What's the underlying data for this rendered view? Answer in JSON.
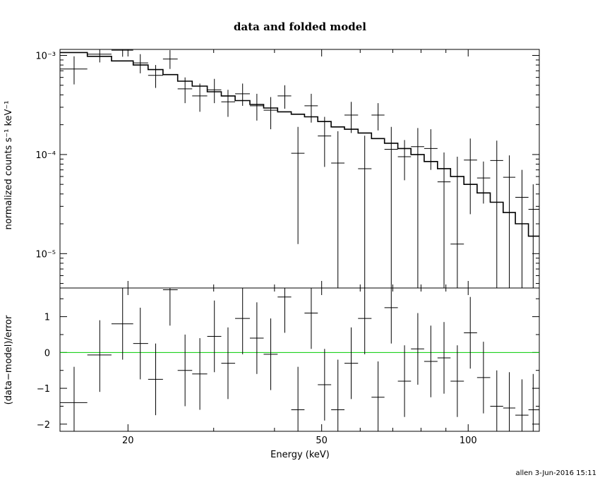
{
  "chart_data": {
    "type": "scatter",
    "title": "data and folded model",
    "xlabel": "Energy (keV)",
    "x_scale": "log",
    "xlim": [
      14.5,
      140
    ],
    "x_ticks": [
      20,
      50,
      100
    ],
    "footer": "allen  3-Jun-2016 15:11",
    "top_panel": {
      "ylabel": "normalized counts s⁻¹ keV⁻¹",
      "y_scale": "log",
      "ylim": [
        4.5e-06,
        0.00115
      ],
      "y_ticks": [
        {
          "value": 0.001,
          "label": "10⁻³"
        },
        {
          "value": 0.0001,
          "label": "10⁻⁴"
        },
        {
          "value": 1e-05,
          "label": "10⁻⁵"
        }
      ],
      "data_points": [
        {
          "x": 15.5,
          "xlo": 14.5,
          "xhi": 16.5,
          "y": 0.00073,
          "ylo": 0.00051,
          "yhi": 0.00098
        },
        {
          "x": 17.5,
          "xlo": 16.5,
          "xhi": 18.5,
          "y": 0.00103,
          "ylo": 0.00085,
          "yhi": 0.00115
        },
        {
          "x": 19.5,
          "xlo": 18.5,
          "xhi": 20.5,
          "y": 0.00113,
          "ylo": 0.00097,
          "yhi": 0.00115
        },
        {
          "x": 21.2,
          "xlo": 20.5,
          "xhi": 22.0,
          "y": 0.00084,
          "ylo": 0.00066,
          "yhi": 0.00103
        },
        {
          "x": 22.8,
          "xlo": 22.0,
          "xhi": 23.6,
          "y": 0.00063,
          "ylo": 0.00047,
          "yhi": 0.0008
        },
        {
          "x": 24.4,
          "xlo": 23.6,
          "xhi": 25.3,
          "y": 0.00092,
          "ylo": 0.00073,
          "yhi": 0.00113
        },
        {
          "x": 26.2,
          "xlo": 25.3,
          "xhi": 27.1,
          "y": 0.00046,
          "ylo": 0.00033,
          "yhi": 0.0006
        },
        {
          "x": 28.1,
          "xlo": 27.1,
          "xhi": 29.1,
          "y": 0.00039,
          "ylo": 0.00027,
          "yhi": 0.00052
        },
        {
          "x": 30.1,
          "xlo": 29.1,
          "xhi": 31.1,
          "y": 0.00045,
          "ylo": 0.00033,
          "yhi": 0.00058
        },
        {
          "x": 32.1,
          "xlo": 31.1,
          "xhi": 33.2,
          "y": 0.00034,
          "ylo": 0.00024,
          "yhi": 0.00045
        },
        {
          "x": 34.4,
          "xlo": 33.2,
          "xhi": 35.6,
          "y": 0.00041,
          "ylo": 0.00031,
          "yhi": 0.00052
        },
        {
          "x": 36.8,
          "xlo": 35.6,
          "xhi": 38.0,
          "y": 0.00031,
          "ylo": 0.00022,
          "yhi": 0.00041
        },
        {
          "x": 39.3,
          "xlo": 38.0,
          "xhi": 40.6,
          "y": 0.00028,
          "ylo": 0.00018,
          "yhi": 0.00038
        },
        {
          "x": 42.0,
          "xlo": 40.6,
          "xhi": 43.3,
          "y": 0.00039,
          "ylo": 0.00029,
          "yhi": 0.0005
        },
        {
          "x": 44.7,
          "xlo": 43.3,
          "xhi": 46.1,
          "y": 0.000103,
          "ylo": 1.25e-05,
          "yhi": 0.00019
        },
        {
          "x": 47.6,
          "xlo": 46.1,
          "xhi": 49.1,
          "y": 0.00031,
          "ylo": 0.00021,
          "yhi": 0.00041
        },
        {
          "x": 50.7,
          "xlo": 49.1,
          "xhi": 52.3,
          "y": 0.000154,
          "ylo": 7.5e-05,
          "yhi": 0.00024
        },
        {
          "x": 54.0,
          "xlo": 52.3,
          "xhi": 55.7,
          "y": 8.2e-05,
          "ylo": 4.5e-06,
          "yhi": 0.000172
        },
        {
          "x": 57.5,
          "xlo": 55.7,
          "xhi": 59.4,
          "y": 0.00025,
          "ylo": 0.000165,
          "yhi": 0.00034
        },
        {
          "x": 61.3,
          "xlo": 59.4,
          "xhi": 63.3,
          "y": 7.2e-05,
          "ylo": 4.5e-06,
          "yhi": 0.000155
        },
        {
          "x": 65.3,
          "xlo": 63.3,
          "xhi": 67.3,
          "y": 0.00025,
          "ylo": 0.000175,
          "yhi": 0.00033
        },
        {
          "x": 69.5,
          "xlo": 67.3,
          "xhi": 71.7,
          "y": 0.000113,
          "ylo": 4.5e-06,
          "yhi": 0.00019
        },
        {
          "x": 74.0,
          "xlo": 71.7,
          "xhi": 76.3,
          "y": 9.5e-05,
          "ylo": 5.5e-05,
          "yhi": 0.00014
        },
        {
          "x": 78.8,
          "xlo": 76.3,
          "xhi": 81.2,
          "y": 0.00012,
          "ylo": 4.5e-06,
          "yhi": 0.000185
        },
        {
          "x": 83.8,
          "xlo": 81.2,
          "xhi": 86.5,
          "y": 0.000115,
          "ylo": 7e-05,
          "yhi": 0.00018
        },
        {
          "x": 89.2,
          "xlo": 86.5,
          "xhi": 92.0,
          "y": 5.3e-05,
          "ylo": 4.5e-06,
          "yhi": 0.000105
        },
        {
          "x": 95.0,
          "xlo": 92.0,
          "xhi": 98.0,
          "y": 1.25e-05,
          "ylo": 4.5e-06,
          "yhi": 9.5e-05
        },
        {
          "x": 101.0,
          "xlo": 98.0,
          "xhi": 104.3,
          "y": 8.8e-05,
          "ylo": 2.5e-05,
          "yhi": 0.000145
        },
        {
          "x": 107.5,
          "xlo": 104.3,
          "xhi": 111.0,
          "y": 5.8e-05,
          "ylo": 3.2e-05,
          "yhi": 8.5e-05
        },
        {
          "x": 114.5,
          "xlo": 111.0,
          "xhi": 118.0,
          "y": 8.7e-05,
          "ylo": 4.5e-06,
          "yhi": 0.000138
        },
        {
          "x": 121.5,
          "xlo": 118.0,
          "xhi": 125.0,
          "y": 5.9e-05,
          "ylo": 4.5e-06,
          "yhi": 9.8e-05
        },
        {
          "x": 129.0,
          "xlo": 125.0,
          "xhi": 133.0,
          "y": 3.7e-05,
          "ylo": 4.5e-06,
          "yhi": 7e-05
        },
        {
          "x": 136.0,
          "xlo": 133.0,
          "xhi": 140.0,
          "y": 2.8e-05,
          "ylo": 4.5e-06,
          "yhi": 5e-05
        }
      ],
      "model_steps": [
        {
          "xlo": 14.5,
          "xhi": 16.5,
          "y": 0.00107
        },
        {
          "xlo": 16.5,
          "xhi": 18.5,
          "y": 0.00098
        },
        {
          "xlo": 18.5,
          "xhi": 20.5,
          "y": 0.00088
        },
        {
          "xlo": 20.5,
          "xhi": 22.0,
          "y": 0.0008
        },
        {
          "xlo": 22.0,
          "xhi": 23.6,
          "y": 0.00072
        },
        {
          "xlo": 23.6,
          "xhi": 25.3,
          "y": 0.00064
        },
        {
          "xlo": 25.3,
          "xhi": 27.1,
          "y": 0.00055
        },
        {
          "xlo": 27.1,
          "xhi": 29.1,
          "y": 0.00049
        },
        {
          "xlo": 29.1,
          "xhi": 31.1,
          "y": 0.00043
        },
        {
          "xlo": 31.1,
          "xhi": 33.2,
          "y": 0.00039
        },
        {
          "xlo": 33.2,
          "xhi": 35.6,
          "y": 0.00035
        },
        {
          "xlo": 35.6,
          "xhi": 38.0,
          "y": 0.00032
        },
        {
          "xlo": 38.0,
          "xhi": 40.6,
          "y": 0.000295
        },
        {
          "xlo": 40.6,
          "xhi": 43.3,
          "y": 0.00027
        },
        {
          "xlo": 43.3,
          "xhi": 46.1,
          "y": 0.000255
        },
        {
          "xlo": 46.1,
          "xhi": 49.1,
          "y": 0.00024
        },
        {
          "xlo": 49.1,
          "xhi": 52.3,
          "y": 0.000215
        },
        {
          "xlo": 52.3,
          "xhi": 55.7,
          "y": 0.00019
        },
        {
          "xlo": 55.7,
          "xhi": 59.4,
          "y": 0.00018
        },
        {
          "xlo": 59.4,
          "xhi": 63.3,
          "y": 0.000165
        },
        {
          "xlo": 63.3,
          "xhi": 67.3,
          "y": 0.000145
        },
        {
          "xlo": 67.3,
          "xhi": 71.7,
          "y": 0.00013
        },
        {
          "xlo": 71.7,
          "xhi": 76.3,
          "y": 0.000115
        },
        {
          "xlo": 76.3,
          "xhi": 81.2,
          "y": 0.0001
        },
        {
          "xlo": 81.2,
          "xhi": 86.5,
          "y": 8.5e-05
        },
        {
          "xlo": 86.5,
          "xhi": 92.0,
          "y": 7.2e-05
        },
        {
          "xlo": 92.0,
          "xhi": 98.0,
          "y": 6e-05
        },
        {
          "xlo": 98.0,
          "xhi": 104.3,
          "y": 5e-05
        },
        {
          "xlo": 104.3,
          "xhi": 111.0,
          "y": 4.1e-05
        },
        {
          "xlo": 111.0,
          "xhi": 118.0,
          "y": 3.3e-05
        },
        {
          "xlo": 118.0,
          "xhi": 125.0,
          "y": 2.6e-05
        },
        {
          "xlo": 125.0,
          "xhi": 133.0,
          "y": 2e-05
        },
        {
          "xlo": 133.0,
          "xhi": 140.0,
          "y": 1.5e-05
        }
      ]
    },
    "bottom_panel": {
      "ylabel": "(data−model)/error",
      "y_scale": "linear",
      "ylim": [
        -2.2,
        1.8
      ],
      "y_ticks": [
        {
          "value": 1,
          "label": "1"
        },
        {
          "value": 0,
          "label": "0"
        },
        {
          "value": -1,
          "label": "−1"
        },
        {
          "value": -2,
          "label": "−2"
        }
      ],
      "zero_line_color": "#00cc00",
      "residuals": [
        {
          "x": 15.5,
          "xlo": 14.5,
          "xhi": 16.5,
          "y": -1.4,
          "ylo": -2.2,
          "yhi": -0.4
        },
        {
          "x": 17.5,
          "xlo": 16.5,
          "xhi": 18.5,
          "y": -0.07,
          "ylo": -1.1,
          "yhi": 0.9
        },
        {
          "x": 19.5,
          "xlo": 18.5,
          "xhi": 20.5,
          "y": 0.8,
          "ylo": -0.2,
          "yhi": 1.8
        },
        {
          "x": 21.2,
          "xlo": 20.5,
          "xhi": 22.0,
          "y": 0.25,
          "ylo": -0.75,
          "yhi": 1.25
        },
        {
          "x": 22.8,
          "xlo": 22.0,
          "xhi": 23.6,
          "y": -0.75,
          "ylo": -1.75,
          "yhi": 0.25
        },
        {
          "x": 24.4,
          "xlo": 23.6,
          "xhi": 25.3,
          "y": 1.75,
          "ylo": 0.75,
          "yhi": 1.8
        },
        {
          "x": 26.2,
          "xlo": 25.3,
          "xhi": 27.1,
          "y": -0.5,
          "ylo": -1.5,
          "yhi": 0.5
        },
        {
          "x": 28.1,
          "xlo": 27.1,
          "xhi": 29.1,
          "y": -0.6,
          "ylo": -1.6,
          "yhi": 0.4
        },
        {
          "x": 30.1,
          "xlo": 29.1,
          "xhi": 31.1,
          "y": 0.45,
          "ylo": -0.55,
          "yhi": 1.45
        },
        {
          "x": 32.1,
          "xlo": 31.1,
          "xhi": 33.2,
          "y": -0.3,
          "ylo": -1.3,
          "yhi": 0.7
        },
        {
          "x": 34.4,
          "xlo": 33.2,
          "xhi": 35.6,
          "y": 0.95,
          "ylo": -0.05,
          "yhi": 1.8
        },
        {
          "x": 36.8,
          "xlo": 35.6,
          "xhi": 38.0,
          "y": 0.4,
          "ylo": -0.6,
          "yhi": 1.4
        },
        {
          "x": 39.3,
          "xlo": 38.0,
          "xhi": 40.6,
          "y": -0.05,
          "ylo": -1.05,
          "yhi": 0.95
        },
        {
          "x": 42.0,
          "xlo": 40.6,
          "xhi": 43.3,
          "y": 1.55,
          "ylo": 0.55,
          "yhi": 1.8
        },
        {
          "x": 44.7,
          "xlo": 43.3,
          "xhi": 46.1,
          "y": -1.6,
          "ylo": -2.2,
          "yhi": -0.4
        },
        {
          "x": 47.6,
          "xlo": 46.1,
          "xhi": 49.1,
          "y": 1.1,
          "ylo": 0.1,
          "yhi": 1.8
        },
        {
          "x": 50.7,
          "xlo": 49.1,
          "xhi": 52.3,
          "y": -0.9,
          "ylo": -1.9,
          "yhi": 0.1
        },
        {
          "x": 54.0,
          "xlo": 52.3,
          "xhi": 55.7,
          "y": -1.6,
          "ylo": -2.2,
          "yhi": -0.2
        },
        {
          "x": 57.5,
          "xlo": 55.7,
          "xhi": 59.4,
          "y": -0.3,
          "ylo": -1.3,
          "yhi": 0.7
        },
        {
          "x": 61.3,
          "xlo": 59.4,
          "xhi": 63.3,
          "y": 0.95,
          "ylo": -0.05,
          "yhi": 1.8
        },
        {
          "x": 65.3,
          "xlo": 63.3,
          "xhi": 67.3,
          "y": -1.25,
          "ylo": -2.2,
          "yhi": -0.25
        },
        {
          "x": 69.5,
          "xlo": 67.3,
          "xhi": 71.7,
          "y": 1.25,
          "ylo": 0.25,
          "yhi": 1.8
        },
        {
          "x": 74.0,
          "xlo": 71.7,
          "xhi": 76.3,
          "y": -0.8,
          "ylo": -1.8,
          "yhi": 0.2
        },
        {
          "x": 78.8,
          "xlo": 76.3,
          "xhi": 81.2,
          "y": 0.1,
          "ylo": -0.9,
          "yhi": 1.1
        },
        {
          "x": 83.8,
          "xlo": 81.2,
          "xhi": 86.5,
          "y": -0.25,
          "ylo": -1.25,
          "yhi": 0.75
        },
        {
          "x": 89.2,
          "xlo": 86.5,
          "xhi": 92.0,
          "y": -0.15,
          "ylo": -1.15,
          "yhi": 0.85
        },
        {
          "x": 95.0,
          "xlo": 92.0,
          "xhi": 98.0,
          "y": -0.8,
          "ylo": -1.8,
          "yhi": 0.2
        },
        {
          "x": 101.0,
          "xlo": 98.0,
          "xhi": 104.3,
          "y": 0.55,
          "ylo": -0.45,
          "yhi": 1.55
        },
        {
          "x": 107.5,
          "xlo": 104.3,
          "xhi": 111.0,
          "y": -0.7,
          "ylo": -1.7,
          "yhi": 0.3
        },
        {
          "x": 114.5,
          "xlo": 111.0,
          "xhi": 118.0,
          "y": -1.5,
          "ylo": -2.2,
          "yhi": -0.5
        },
        {
          "x": 121.5,
          "xlo": 118.0,
          "xhi": 125.0,
          "y": -1.55,
          "ylo": -2.2,
          "yhi": -0.55
        },
        {
          "x": 129.0,
          "xlo": 125.0,
          "xhi": 133.0,
          "y": -1.75,
          "ylo": -2.2,
          "yhi": -0.75
        },
        {
          "x": 136.0,
          "xlo": 133.0,
          "xhi": 140.0,
          "y": -1.6,
          "ylo": -2.2,
          "yhi": -0.6
        }
      ]
    }
  }
}
